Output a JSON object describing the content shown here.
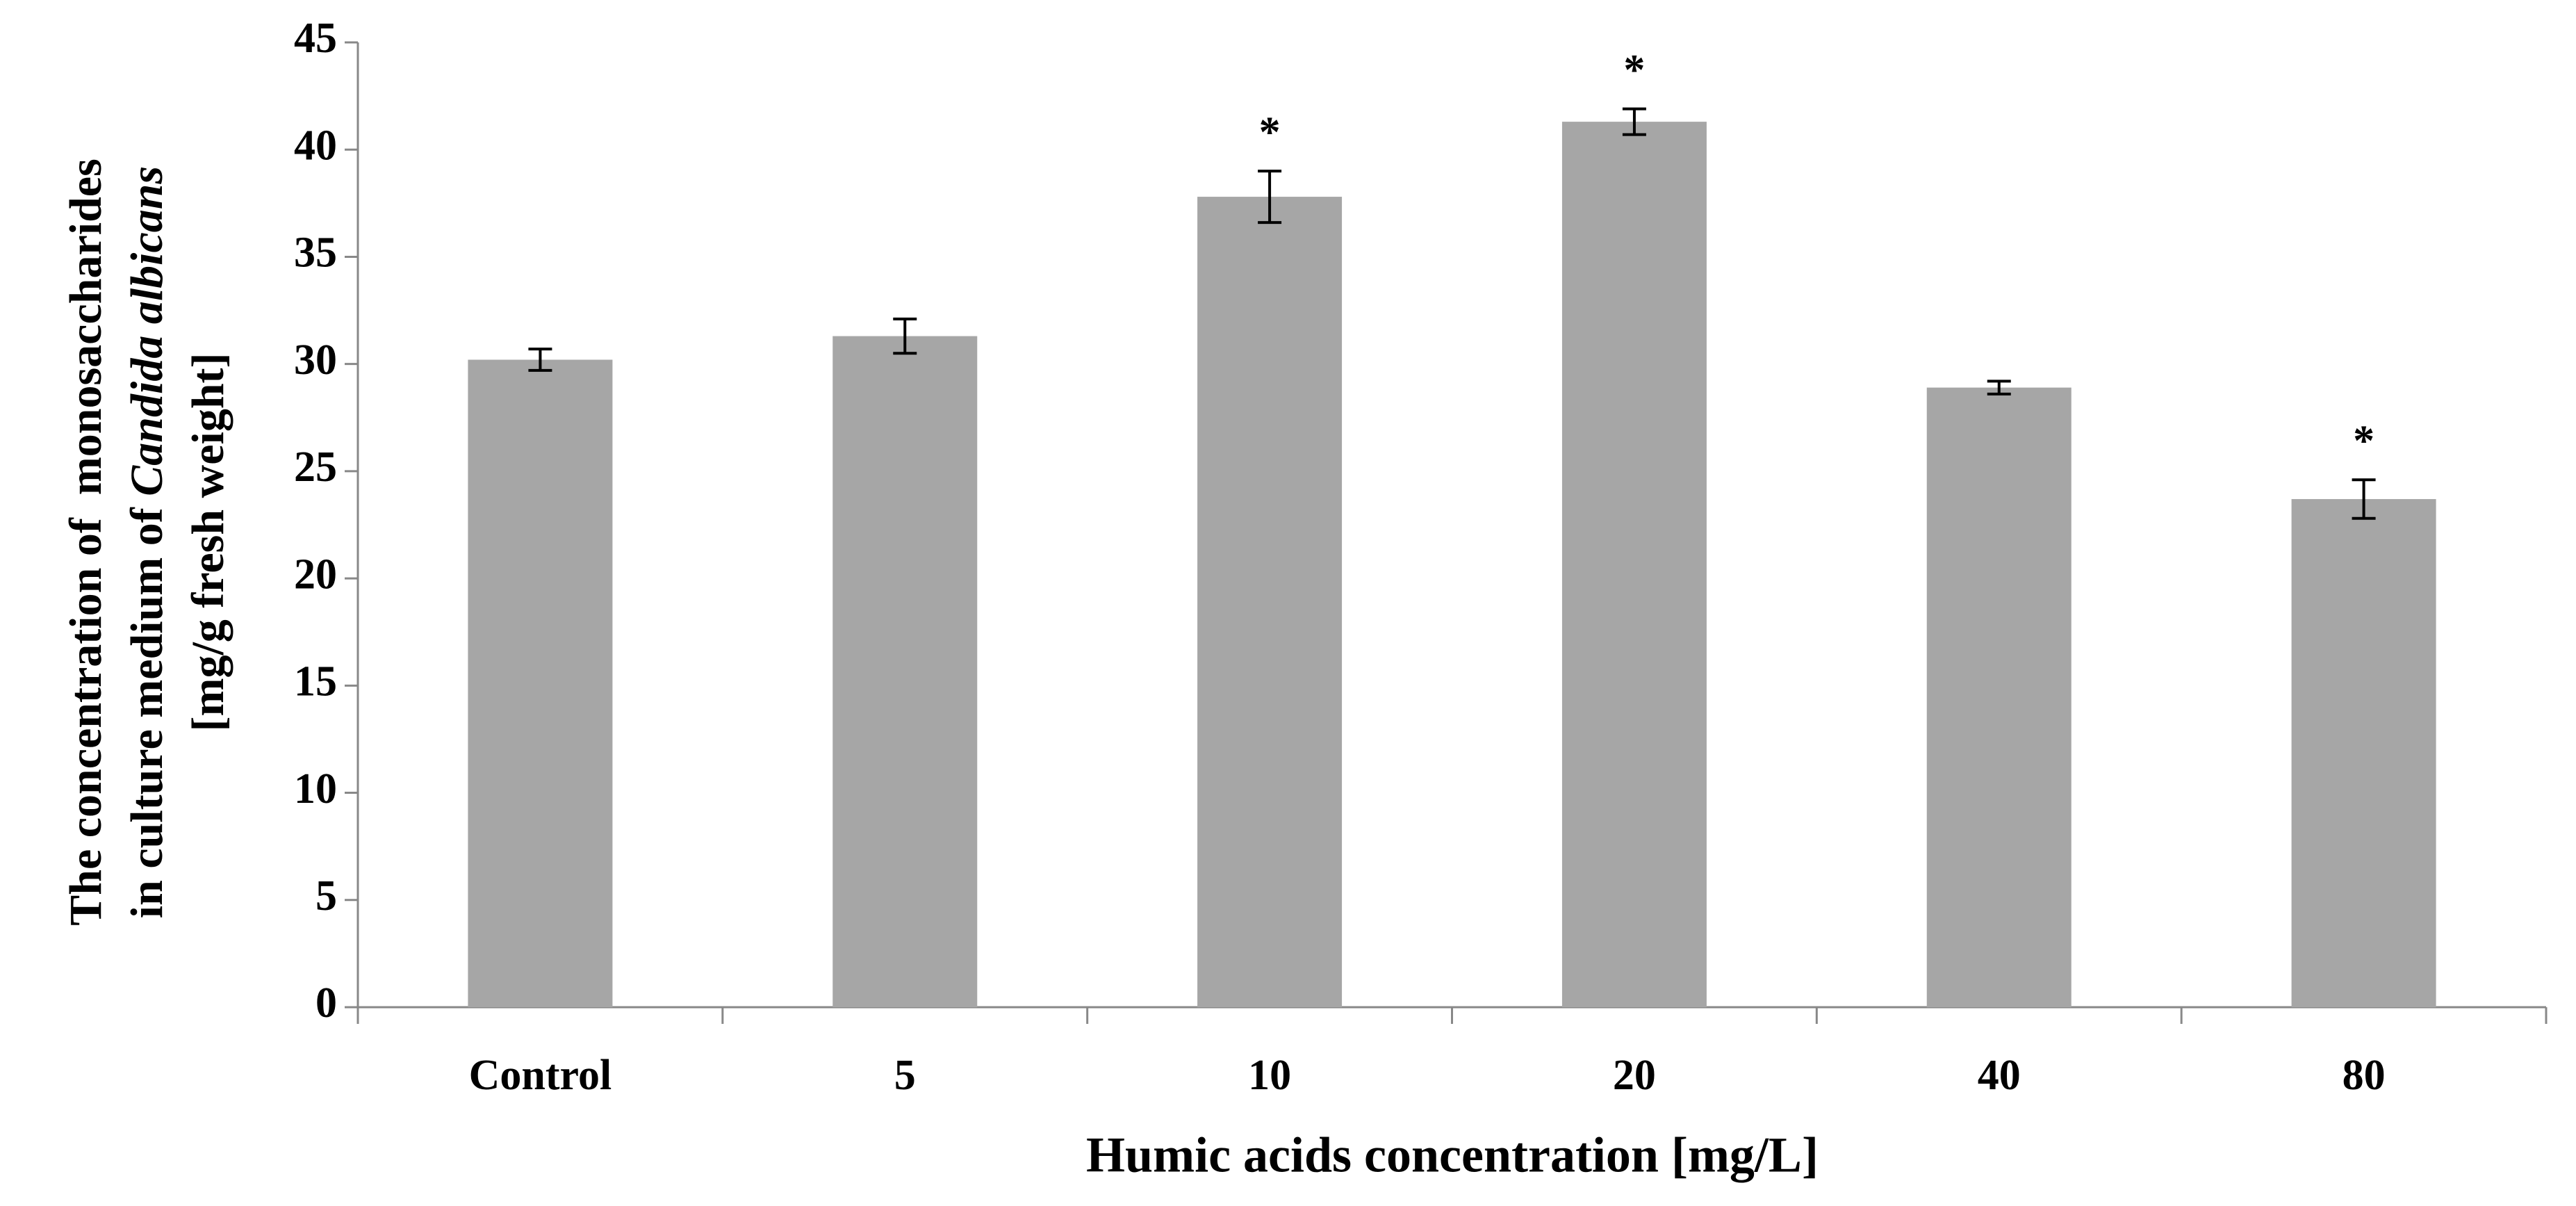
{
  "chart_data": {
    "type": "bar",
    "xlabel": "Humic acids concentration [mg/L]",
    "ylabel": [
      "The concentration of  monosaccharides",
      "in culture medium of ",
      "Candida albicans",
      "[mg/g fresh weight]"
    ],
    "categories": [
      "Control",
      "5",
      "10",
      "20",
      "40",
      "80"
    ],
    "values": [
      30.2,
      31.3,
      37.8,
      41.3,
      28.9,
      23.7
    ],
    "errors": [
      0.5,
      0.8,
      1.2,
      0.6,
      0.3,
      0.9
    ],
    "value_markers": [
      null,
      null,
      "*",
      "*",
      null,
      "*"
    ],
    "color": "#a6a6a6",
    "ylim": [
      0,
      45
    ],
    "yticks": [
      0,
      5,
      10,
      15,
      20,
      25,
      30,
      35,
      40,
      45
    ],
    "grid": false
  }
}
